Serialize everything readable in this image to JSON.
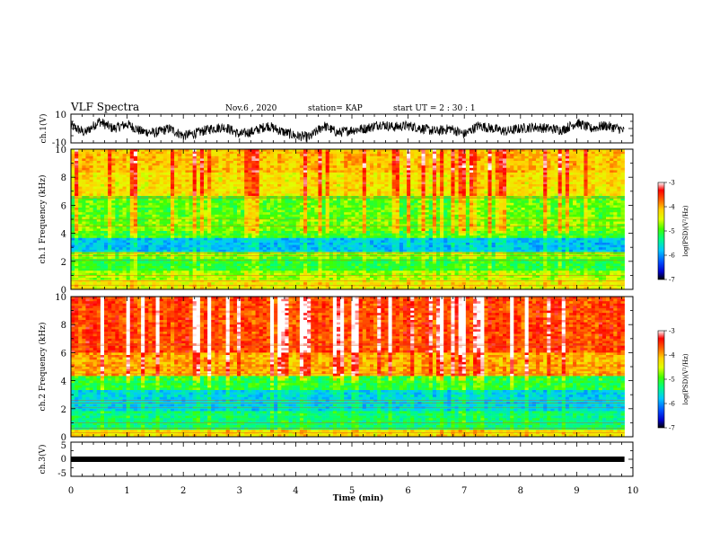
{
  "header": {
    "title": "VLF Spectra",
    "date": "Nov.6  , 2020",
    "station": "station= KAP",
    "start_ut": "start  UT  =   2  : 30 : 1"
  },
  "chart_data": [
    {
      "type": "line",
      "panel": "ch1-waveform",
      "ylabel": "ch.1(V)",
      "ylim": [
        -10,
        10
      ],
      "yticks": [
        "10",
        "-10"
      ],
      "xlim": [
        0,
        10
      ],
      "trace_end_min": 9.85,
      "series": [
        {
          "x": [
            0,
            0.25,
            0.5,
            0.75,
            1,
            1.25,
            1.5,
            1.75,
            2,
            2.25,
            2.5,
            2.75,
            3,
            3.25,
            3.5,
            3.75,
            4,
            4.25,
            4.5,
            4.75,
            5,
            5.25,
            5.5,
            5.75,
            6,
            6.25,
            6.5,
            6.75,
            7,
            7.25,
            7.5,
            7.75,
            8,
            8.25,
            8.5,
            8.75,
            9,
            9.25,
            9.5,
            9.75,
            9.85
          ],
          "values": [
            2,
            -3,
            5,
            0,
            3,
            -2,
            -3,
            0,
            -5,
            -3,
            0,
            1,
            -4,
            -2,
            2,
            -2,
            -5,
            -6,
            2,
            -3,
            -1,
            0,
            3,
            1,
            2,
            0,
            -2,
            0,
            -4,
            2,
            0,
            -2,
            0,
            1,
            0,
            -1,
            4,
            0,
            2,
            0,
            -2
          ]
        }
      ]
    },
    {
      "type": "heatmap",
      "panel": "ch1-spectrogram",
      "ylabel": "ch.1 Frequency (kHz)",
      "ylim": [
        0,
        10
      ],
      "yticks": [
        "0",
        "2",
        "4",
        "6",
        "8",
        "10"
      ],
      "xlim": [
        0,
        10
      ],
      "bands": [
        {
          "from": 0,
          "to": 0.6,
          "level": -4.4
        },
        {
          "from": 0.6,
          "to": 1.4,
          "level": -4.7
        },
        {
          "from": 1.4,
          "to": 2.2,
          "level": -5.1
        },
        {
          "from": 2.2,
          "to": 2.7,
          "level": -4.8
        },
        {
          "from": 2.7,
          "to": 3.6,
          "level": -5.8
        },
        {
          "from": 3.6,
          "to": 4.2,
          "level": -5.0
        },
        {
          "from": 4.2,
          "to": 5.2,
          "level": -4.8
        },
        {
          "from": 5.2,
          "to": 6.6,
          "level": -4.9
        },
        {
          "from": 6.6,
          "to": 8.4,
          "level": -4.3
        },
        {
          "from": 8.4,
          "to": 10,
          "level": -4.1
        }
      ]
    },
    {
      "type": "heatmap",
      "panel": "ch2-spectrogram",
      "ylabel": "ch.2 Frequency (kHz)",
      "ylim": [
        0,
        10
      ],
      "yticks": [
        "0",
        "2",
        "4",
        "6",
        "8",
        "10"
      ],
      "xlim": [
        0,
        10
      ],
      "bands": [
        {
          "from": 0,
          "to": 0.5,
          "level": -4.3
        },
        {
          "from": 0.5,
          "to": 1.8,
          "level": -5.3
        },
        {
          "from": 1.8,
          "to": 3.4,
          "level": -5.7
        },
        {
          "from": 3.4,
          "to": 4.4,
          "level": -5.1
        },
        {
          "from": 4.4,
          "to": 6.0,
          "level": -4.0
        },
        {
          "from": 6.0,
          "to": 10,
          "level": -3.6
        }
      ]
    },
    {
      "type": "line",
      "panel": "ch3-waveform",
      "ylabel": "ch.3(V)",
      "ylim": [
        -5,
        5
      ],
      "yticks": [
        "5",
        "0",
        "-5"
      ],
      "xlim": [
        0,
        10
      ],
      "trace_end_min": 9.85,
      "series": [
        {
          "x": [
            0,
            9.85
          ],
          "values": [
            0,
            0
          ]
        }
      ]
    }
  ],
  "xaxis": {
    "label": "Time  (min)",
    "ticks": [
      "0",
      "1",
      "2",
      "3",
      "4",
      "5",
      "6",
      "7",
      "8",
      "9",
      "10"
    ]
  },
  "colorbar": {
    "label": "log(PSD)(V²/Hz)",
    "range": [
      -7,
      -3
    ],
    "ticks": [
      "-3",
      "-4",
      "-5",
      "-6",
      "-7"
    ],
    "stops": [
      "#000000",
      "#0000cc",
      "#0050ff",
      "#00c8ff",
      "#00ff80",
      "#40ff00",
      "#e0ff00",
      "#ffd000",
      "#ff6000",
      "#ff0000",
      "#ffffff"
    ]
  }
}
